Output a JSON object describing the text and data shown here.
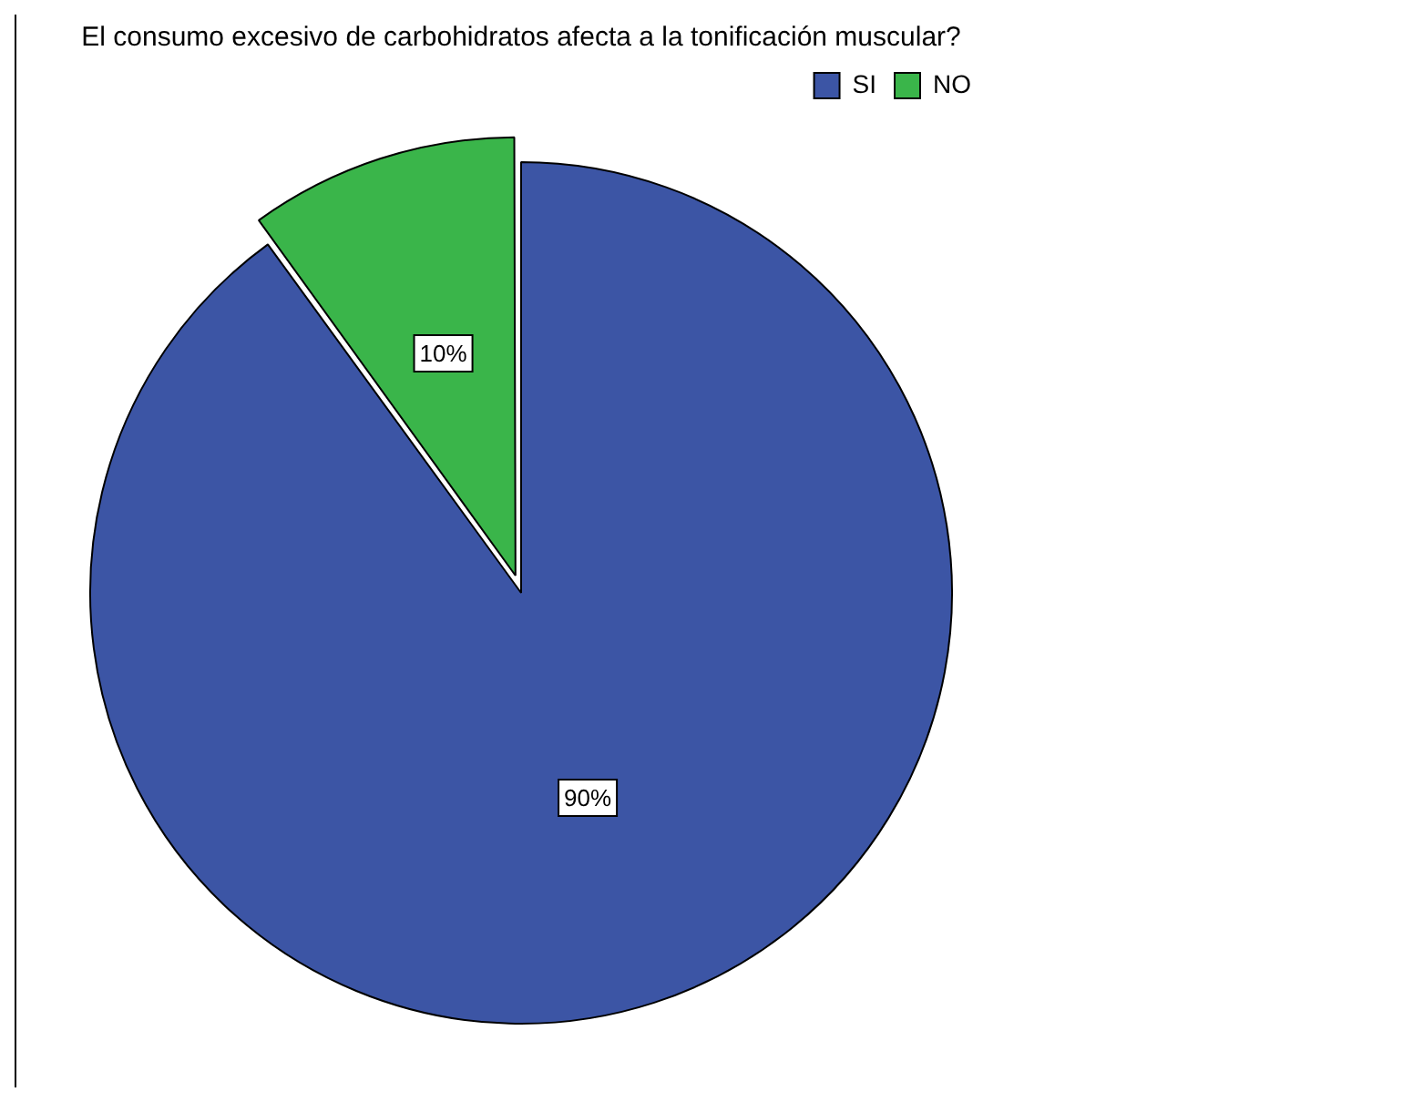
{
  "chart_data": {
    "type": "pie",
    "title": "El consumo excesivo de carbohidratos afecta a la tonificación muscular?",
    "categories": [
      "SI",
      "NO"
    ],
    "values": [
      90,
      10
    ],
    "colors": [
      "#3c55a5",
      "#3ab54a"
    ],
    "value_labels": [
      "90%",
      "10%"
    ],
    "legend": "top right"
  }
}
